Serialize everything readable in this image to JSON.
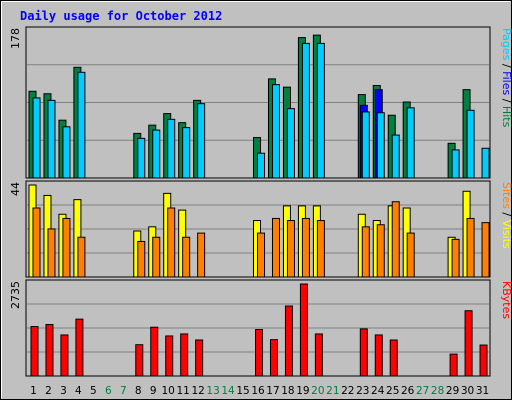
{
  "chart_data": {
    "type": "bar",
    "title": "Daily usage for October 2012",
    "categories": [
      "1",
      "2",
      "3",
      "4",
      "5",
      "6",
      "7",
      "8",
      "9",
      "10",
      "11",
      "12",
      "13",
      "14",
      "15",
      "16",
      "17",
      "18",
      "19",
      "20",
      "21",
      "22",
      "23",
      "24",
      "25",
      "26",
      "27",
      "28",
      "29",
      "30",
      "31"
    ],
    "weekend_days": [
      6,
      7,
      13,
      14,
      20,
      21,
      27,
      28
    ],
    "panels": [
      {
        "id": "hits",
        "max_label": "178",
        "ymax": 178,
        "legend": [
          {
            "text": "Pages",
            "color": "#00ccff"
          },
          {
            "text": " / ",
            "color": "#000000"
          },
          {
            "text": "Files",
            "color": "#0000ff"
          },
          {
            "text": " / ",
            "color": "#000000"
          },
          {
            "text": "Hits",
            "color": "#008040"
          }
        ],
        "series": [
          {
            "name": "Hits",
            "color": "#008040",
            "values": [
              105,
              102,
              70,
              134,
              0,
              0,
              0,
              54,
              64,
              78,
              67,
              94,
              0,
              0,
              0,
              49,
              120,
              110,
              170,
              173,
              0,
              0,
              101,
              112,
              76,
              92,
              0,
              0,
              42,
              107,
              0
            ]
          },
          {
            "name": "Files",
            "color": "#0000ff",
            "values": [
              0,
              0,
              0,
              0,
              0,
              0,
              0,
              0,
              0,
              0,
              0,
              0,
              0,
              0,
              0,
              0,
              0,
              0,
              0,
              0,
              0,
              0,
              88,
              107,
              0,
              0,
              0,
              0,
              0,
              0,
              0
            ]
          },
          {
            "name": "Pages",
            "color": "#00ccff",
            "values": [
              97,
              94,
              62,
              128,
              0,
              0,
              0,
              48,
              58,
              71,
              61,
              90,
              0,
              0,
              0,
              30,
              113,
              84,
              163,
              163,
              0,
              0,
              80,
              79,
              52,
              85,
              0,
              0,
              34,
              82,
              36
            ]
          }
        ]
      },
      {
        "id": "visits",
        "max_label": "44",
        "ymax": 44,
        "legend": [
          {
            "text": "Sites",
            "color": "#ff8000"
          },
          {
            "text": " / ",
            "color": "#000000"
          },
          {
            "text": "Visits",
            "color": "#ffff00"
          }
        ],
        "series": [
          {
            "name": "Visits",
            "color": "#ffff00",
            "values": [
              44,
              39,
              30,
              37,
              0,
              0,
              0,
              22,
              24,
              40,
              32,
              0,
              0,
              0,
              0,
              27,
              0,
              34,
              34,
              34,
              0,
              0,
              30,
              27,
              34,
              33,
              0,
              0,
              19,
              41,
              0
            ]
          },
          {
            "name": "Sites",
            "color": "#ff8000",
            "values": [
              33,
              23,
              28,
              19,
              0,
              0,
              0,
              17,
              19,
              33,
              19,
              21,
              0,
              0,
              0,
              21,
              28,
              27,
              28,
              27,
              0,
              0,
              24,
              25,
              36,
              21,
              0,
              0,
              18,
              28,
              26
            ]
          }
        ]
      },
      {
        "id": "kbytes",
        "max_label": "2735",
        "ymax": 2735,
        "legend": [
          {
            "text": "KBytes",
            "color": "#ff0000"
          }
        ],
        "series": [
          {
            "name": "KBytes",
            "color": "#ff0000",
            "values": [
              1470,
              1530,
              1220,
              1690,
              0,
              0,
              0,
              930,
              1450,
              1190,
              1250,
              1070,
              0,
              0,
              0,
              1380,
              1080,
              2080,
              2735,
              1250,
              0,
              0,
              1400,
              1220,
              1070,
              0,
              0,
              0,
              650,
              1940,
              920
            ]
          }
        ]
      }
    ]
  }
}
